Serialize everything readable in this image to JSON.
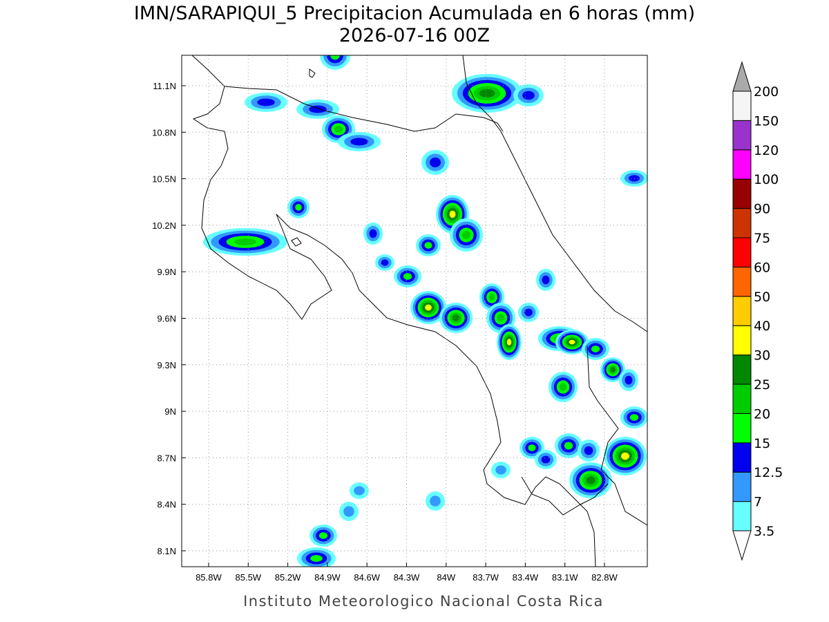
{
  "title": "IMN/SARAPIQUI_5 Precipitacion Acumulada en 6 horas (mm)",
  "subtitle": "2026-07-16 00Z",
  "map": {
    "lon_labels": [
      "85.8W",
      "85.5W",
      "85.2W",
      "84.9W",
      "84.6W",
      "84.3W",
      "84W",
      "83.7W",
      "83.4W",
      "83.1W",
      "82.8W"
    ],
    "lat_labels": [
      "11.1N",
      "10.8N",
      "10.5N",
      "10.2N",
      "9.9N",
      "9.6N",
      "9.3N",
      "9N",
      "8.7N",
      "8.4N",
      "8.1N"
    ]
  },
  "colorbar": {
    "levels": [
      "3.5",
      "7",
      "12.5",
      "15",
      "20",
      "25",
      "30",
      "40",
      "50",
      "60",
      "75",
      "90",
      "100",
      "120",
      "150",
      "200"
    ],
    "colors": [
      "#66ffff",
      "#3399ff",
      "#0000ee",
      "#00ff00",
      "#00cc00",
      "#008800",
      "#ffff00",
      "#ffcc00",
      "#ff6600",
      "#ff0000",
      "#cc3300",
      "#990000",
      "#ff00ff",
      "#9933cc",
      "#f5f5f5"
    ],
    "under_color": "#ffffff",
    "over_color": "#aaaaaa"
  },
  "footer": "Instituto Meteorologico Nacional Costa Rica"
}
